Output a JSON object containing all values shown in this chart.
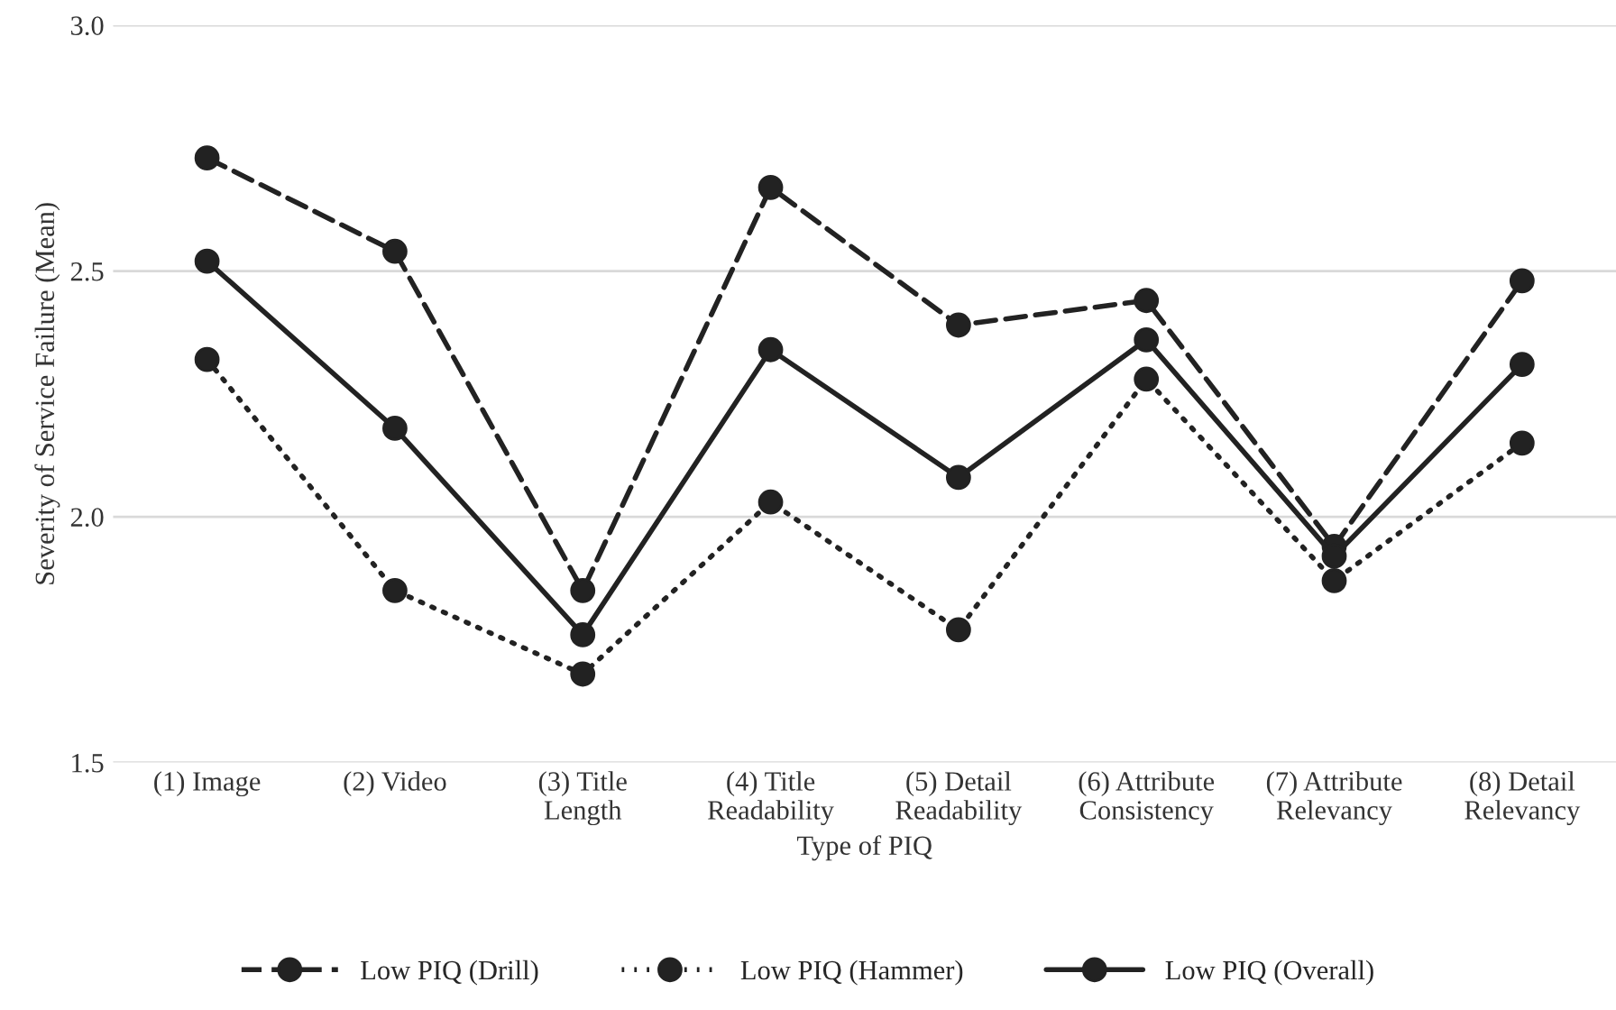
{
  "chart_data": {
    "type": "line",
    "xlabel": "Type of PIQ",
    "ylabel": "Severity of Service Failure (Mean)",
    "categories": [
      "(1) Image",
      "(2) Video",
      "(3) Title\nLength",
      "(4) Title\nReadability",
      "(5) Detail\nReadability",
      "(6) Attribute\nConsistency",
      "(7) Attribute\nRelevancy",
      "(8) Detail\nRelevancy"
    ],
    "series": [
      {
        "name": "Low PIQ (Drill)",
        "color": "#222222",
        "line_style": "dashed",
        "values": [
          2.73,
          2.54,
          1.85,
          2.67,
          2.39,
          2.44,
          1.94,
          2.48
        ]
      },
      {
        "name": "Low PIQ (Hammer)",
        "color": "#222222",
        "line_style": "dotted",
        "values": [
          2.32,
          1.85,
          1.68,
          2.03,
          1.77,
          2.28,
          1.87,
          2.15
        ]
      },
      {
        "name": "Low PIQ (Overall)",
        "color": "#222222",
        "line_style": "solid",
        "values": [
          2.52,
          2.18,
          1.76,
          2.34,
          2.08,
          2.36,
          1.92,
          2.31
        ]
      }
    ],
    "ylim": [
      1.5,
      3.0
    ],
    "yticks": [
      {
        "value": 1.5,
        "label": "1.5"
      },
      {
        "value": 2.0,
        "label": "2.0"
      },
      {
        "value": 2.5,
        "label": "2.5"
      },
      {
        "value": 3.0,
        "label": "3.0"
      }
    ],
    "grid": "y",
    "legend": "bottom",
    "marker": "circle"
  }
}
